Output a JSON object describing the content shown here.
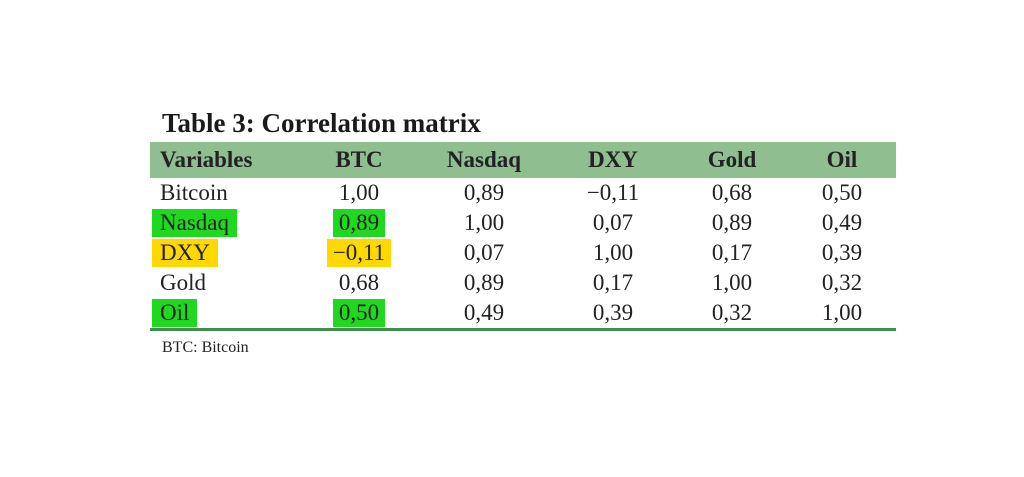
{
  "title": "Table 3: Correlation matrix",
  "headers": [
    "Variables",
    "BTC",
    "Nasdaq",
    "DXY",
    "Gold",
    "Oil"
  ],
  "rows": [
    [
      "Bitcoin",
      "1,00",
      "0,89",
      "−0,11",
      "0,68",
      "0,50"
    ],
    [
      "Nasdaq",
      "0,89",
      "1,00",
      "0,07",
      "0,89",
      "0,49"
    ],
    [
      "DXY",
      "−0,11",
      "0,07",
      "1,00",
      "0,17",
      "0,39"
    ],
    [
      "Gold",
      "0,68",
      "0,89",
      "0,17",
      "1,00",
      "0,32"
    ],
    [
      "Oil",
      "0,50",
      "0,49",
      "0,39",
      "0,32",
      "1,00"
    ]
  ],
  "highlights": [
    {
      "row": 1,
      "col": 0,
      "color": "#1fd81f"
    },
    {
      "row": 1,
      "col": 1,
      "color": "#1fd81f"
    },
    {
      "row": 2,
      "col": 0,
      "color": "#ffd800"
    },
    {
      "row": 2,
      "col": 1,
      "color": "#ffd800"
    },
    {
      "row": 4,
      "col": 0,
      "color": "#1fd81f"
    },
    {
      "row": 4,
      "col": 1,
      "color": "#1fd81f"
    }
  ],
  "header_color": "#8fbf91",
  "rule_color": "#3f8f4a",
  "footnote": "BTC: Bitcoin"
}
